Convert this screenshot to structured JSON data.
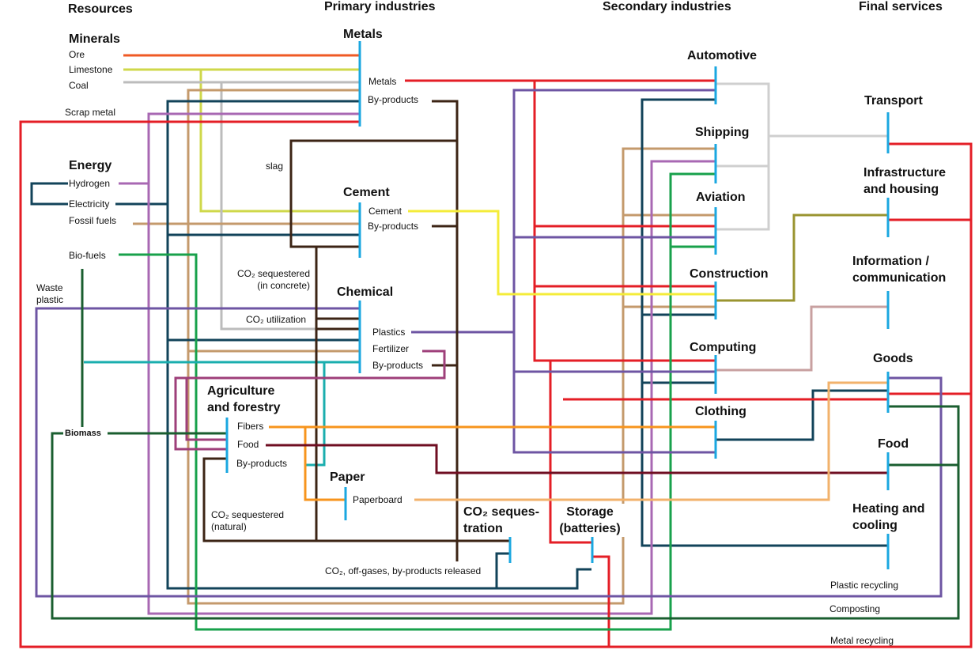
{
  "columns": {
    "resources": "Resources",
    "primary": "Primary industries",
    "secondary": "Secondary industries",
    "final": "Final services"
  },
  "resources": {
    "minerals": "Minerals",
    "ore": "Ore",
    "limestone": "Limestone",
    "coal": "Coal",
    "scrap_metal": "Scrap metal",
    "energy": "Energy",
    "hydrogen": "Hydrogen",
    "electricity": "Electricity",
    "fossil_fuels": "Fossil fuels",
    "bio_fuels": "Bio-fuels",
    "waste_plastic_1": "Waste",
    "waste_plastic_2": "plastic",
    "biomass": "Biomass"
  },
  "primary": {
    "metals": "Metals",
    "metals_out": "Metals",
    "metals_byproducts": "By-products",
    "slag": "slag",
    "cement": "Cement",
    "cement_out": "Cement",
    "cement_byproducts": "By-products",
    "co2_concrete_1": "CO₂ sequestered",
    "co2_concrete_2": "(in concrete)",
    "chemical": "Chemical",
    "co2_utilization": "CO₂ utilization",
    "plastics": "Plastics",
    "fertilizer": "Fertilizer",
    "chemical_byproducts": "By-products",
    "agri_1": "Agriculture",
    "agri_2": "and forestry",
    "fibers": "Fibers",
    "food": "Food",
    "agri_byproducts": "By-products",
    "co2_natural_1": "CO₂ sequestered",
    "co2_natural_2": "(natural)",
    "paper": "Paper",
    "paperboard": "Paperboard",
    "co2_released": "CO₂, off-gases, by-products released"
  },
  "secondary": {
    "automotive": "Automotive",
    "shipping": "Shipping",
    "aviation": "Aviation",
    "construction": "Construction",
    "computing": "Computing",
    "clothing": "Clothing",
    "co2_seq_1": "CO₂ seques-",
    "co2_seq_2": "tration",
    "storage_1": "Storage",
    "storage_2": "(batteries)"
  },
  "final": {
    "transport": "Transport",
    "infra_1": "Infrastructure",
    "infra_2": "and housing",
    "info_1": "Information /",
    "info_2": "communication",
    "goods": "Goods",
    "food": "Food",
    "heating_1": "Heating and",
    "heating_2": "cooling"
  },
  "recycling": {
    "plastic": "Plastic recycling",
    "composting": "Composting",
    "metal": "Metal recycling"
  },
  "colors": {
    "node_bar": "#1aa7e0",
    "ore": "#ef5a24",
    "limestone": "#cfd84a",
    "coal": "#bcbcbc",
    "metal_red": "#e41e26",
    "hydrogen_purple": "#a868b3",
    "electricity_navy": "#12435a",
    "fossil_tan": "#c49a6c",
    "biofuel_green": "#18a14b",
    "plastic_purple": "#6e55a3",
    "teal": "#1aaeae",
    "dark_brown": "#3c2415",
    "cement_yellow": "#f4ec3a",
    "fertilizer_magenta": "#9e3f7a",
    "fibers_orange": "#f7941d",
    "food_maroon": "#6f0e22",
    "paper_lightorange": "#f2b26b",
    "biomass_darkgreen": "#1a5e2f",
    "olive": "#9a9430",
    "pink_gray": "#c8a0a0"
  }
}
